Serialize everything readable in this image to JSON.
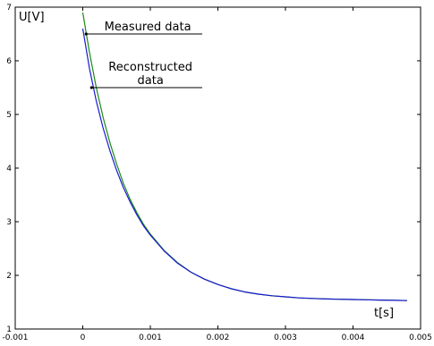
{
  "chart_data": {
    "type": "line",
    "title": "",
    "xlabel": "t[s]",
    "ylabel": "U[V]",
    "xlim": [
      -0.001,
      0.005
    ],
    "ylim": [
      1,
      7
    ],
    "x_ticks": [
      -0.001,
      0,
      0.001,
      0.002,
      0.003,
      0.004,
      0.005
    ],
    "x_tick_labels": [
      "-0.001",
      "0",
      "0.001",
      "0.002",
      "0.003",
      "0.004",
      "0.005"
    ],
    "y_ticks": [
      1,
      2,
      3,
      4,
      5,
      6,
      7
    ],
    "y_tick_labels": [
      "1",
      "2",
      "3",
      "4",
      "5",
      "6",
      "7"
    ],
    "grid": false,
    "series": [
      {
        "name": "Measured data",
        "color": "#1a8a1a",
        "x": [
          0.0,
          0.0001,
          0.0002,
          0.0003,
          0.0004,
          0.0005,
          0.0006,
          0.0007,
          0.0008,
          0.0009,
          0.001,
          0.0012,
          0.0014,
          0.0016,
          0.0018,
          0.002,
          0.0022,
          0.0024,
          0.0026,
          0.0028,
          0.003,
          0.0032,
          0.0034,
          0.0036,
          0.0038,
          0.004,
          0.0042,
          0.0044,
          0.0046,
          0.0048
        ],
        "y": [
          6.9,
          6.15,
          5.5,
          4.95,
          4.48,
          4.08,
          3.72,
          3.42,
          3.17,
          2.95,
          2.77,
          2.47,
          2.24,
          2.06,
          1.93,
          1.83,
          1.75,
          1.69,
          1.65,
          1.62,
          1.6,
          1.58,
          1.57,
          1.56,
          1.555,
          1.55,
          1.545,
          1.54,
          1.535,
          1.53
        ]
      },
      {
        "name": "Reconstructed data",
        "color": "#1a1ad0",
        "x": [
          0.0,
          0.0001,
          0.0002,
          0.0003,
          0.0004,
          0.0005,
          0.0006,
          0.0007,
          0.0008,
          0.0009,
          0.001,
          0.0012,
          0.0014,
          0.0016,
          0.0018,
          0.002,
          0.0022,
          0.0024,
          0.0026,
          0.0028,
          0.003,
          0.0032,
          0.0034,
          0.0036,
          0.0038,
          0.004,
          0.0042,
          0.0044,
          0.0046,
          0.0048
        ],
        "y": [
          6.6,
          5.85,
          5.25,
          4.75,
          4.33,
          3.96,
          3.64,
          3.37,
          3.13,
          2.92,
          2.75,
          2.46,
          2.23,
          2.06,
          1.93,
          1.83,
          1.75,
          1.69,
          1.65,
          1.62,
          1.6,
          1.58,
          1.57,
          1.56,
          1.555,
          1.55,
          1.545,
          1.54,
          1.535,
          1.53
        ]
      }
    ],
    "annotations": [
      {
        "lines": [
          "Measured data"
        ],
        "series": "Measured data",
        "point": [
          5e-05,
          6.5
        ]
      },
      {
        "lines": [
          "Reconstructed",
          "data"
        ],
        "series": "Reconstructed data",
        "point": [
          0.00013,
          5.5
        ]
      }
    ]
  }
}
